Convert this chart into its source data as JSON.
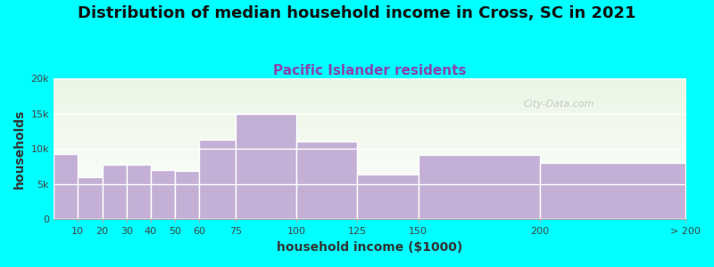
{
  "title": "Distribution of median household income in Cross, SC in 2021",
  "subtitle": "Pacific Islander residents",
  "xlabel": "household income ($1000)",
  "ylabel": "households",
  "background_color": "#00FFFF",
  "bar_color": "#c4afd6",
  "bar_edge_color": "#ffffff",
  "bin_edges": [
    0,
    10,
    20,
    30,
    40,
    50,
    60,
    75,
    100,
    125,
    150,
    200,
    260
  ],
  "bin_labels": [
    "10",
    "20",
    "30",
    "40",
    "50",
    "60",
    "75",
    "100",
    "125",
    "150",
    "200",
    "> 200"
  ],
  "values": [
    9300,
    6000,
    7700,
    7700,
    7000,
    6900,
    11300,
    15100,
    11000,
    6400,
    9200,
    8000
  ],
  "ylim": [
    0,
    20000
  ],
  "yticks": [
    0,
    5000,
    10000,
    15000,
    20000
  ],
  "ytick_labels": [
    "0",
    "5k",
    "10k",
    "15k",
    "20k"
  ],
  "title_fontsize": 13,
  "subtitle_fontsize": 11,
  "axis_label_fontsize": 10,
  "tick_fontsize": 8,
  "title_color": "#111111",
  "subtitle_color": "#8844aa",
  "axis_label_color": "#333333",
  "tick_color": "#444444",
  "watermark": "City-Data.com",
  "plot_bg_color_top": "#d8f0d0",
  "plot_bg_color_bottom": "#ffffff"
}
